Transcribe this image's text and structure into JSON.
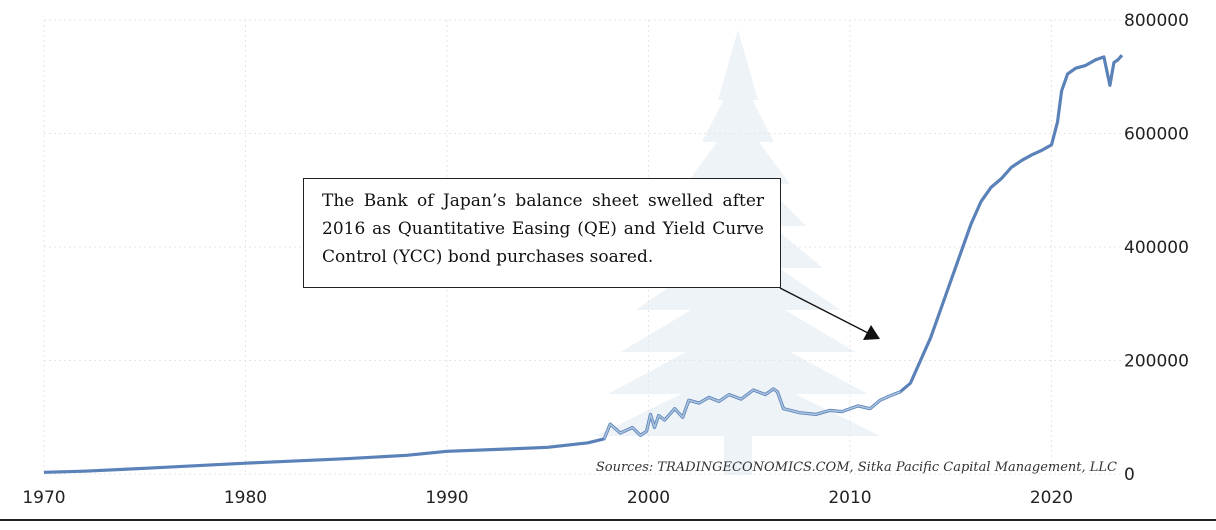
{
  "colors": {
    "line": "#5b82b8",
    "line_highlight": "#a9c2dd",
    "grid": "#e6e6e6",
    "axis": "#222222",
    "watermark": "#eef3f8"
  },
  "annotation": {
    "text": "The Bank of Japan’s balance sheet swelled after 2016 as Quantitative Easing (QE) and Yield Curve Control (YCC) bond purchases soared."
  },
  "source": "Sources: TRADINGECONOMICS.COM, Sitka Pacific Capital Management, LLC",
  "chart_data": {
    "type": "line",
    "title": "",
    "xlabel": "",
    "ylabel": "",
    "xlim": [
      1970,
      2023.5
    ],
    "ylim": [
      0,
      800000
    ],
    "x_ticks": [
      "1970",
      "1980",
      "1990",
      "2000",
      "2010",
      "2020"
    ],
    "y_ticks": [
      "0",
      "200000",
      "400000",
      "600000",
      "800000"
    ],
    "grid": true,
    "legend": "none",
    "series": [
      {
        "name": "",
        "x": [
          1970,
          1972,
          1975,
          1980,
          1985,
          1988,
          1990,
          1993,
          1995,
          1997,
          1997.8,
          1998.1,
          1998.6,
          1999.2,
          1999.6,
          1999.9,
          2000.1,
          2000.3,
          2000.5,
          2000.8,
          2001.3,
          2001.7,
          2002.0,
          2002.5,
          2003.0,
          2003.5,
          2004.0,
          2004.6,
          2005.2,
          2005.8,
          2006.2,
          2006.4,
          2006.7,
          2007.5,
          2008.3,
          2009.0,
          2009.6,
          2010.4,
          2011.0,
          2011.5,
          2012.0,
          2012.5,
          2013.0,
          2013.5,
          2014.0,
          2014.5,
          2015.0,
          2015.5,
          2016.0,
          2016.5,
          2017.0,
          2017.5,
          2018.0,
          2018.5,
          2019.0,
          2019.5,
          2020.0,
          2020.3,
          2020.5,
          2020.8,
          2021.2,
          2021.7,
          2022.2,
          2022.6,
          2022.9,
          2023.1,
          2023.3,
          2023.5
        ],
        "values": [
          3000,
          5000,
          10000,
          19000,
          27000,
          33000,
          40000,
          44000,
          47000,
          55000,
          62000,
          88000,
          72000,
          82000,
          68000,
          75000,
          105000,
          82000,
          103000,
          95000,
          115000,
          100000,
          130000,
          125000,
          135000,
          128000,
          140000,
          132000,
          148000,
          140000,
          150000,
          145000,
          115000,
          108000,
          105000,
          112000,
          110000,
          120000,
          115000,
          130000,
          138000,
          145000,
          160000,
          200000,
          240000,
          290000,
          340000,
          390000,
          440000,
          480000,
          505000,
          520000,
          540000,
          552000,
          562000,
          570000,
          580000,
          620000,
          675000,
          705000,
          715000,
          720000,
          730000,
          735000,
          685000,
          725000,
          730000,
          738000
        ]
      }
    ],
    "highlight_range": [
      1997.8,
      2012.5
    ]
  }
}
